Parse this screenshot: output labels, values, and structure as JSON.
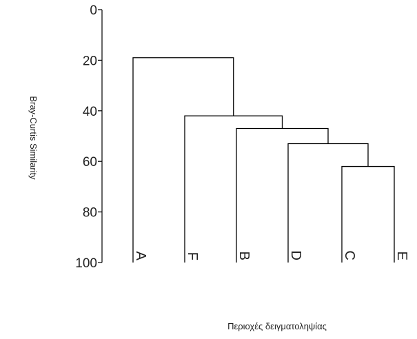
{
  "chart_data": {
    "type": "dendrogram",
    "ylabel": "Bray-Curtis Similarity",
    "xlabel": "Περιοχές δειγματοληψίας",
    "ylim": [
      0,
      100
    ],
    "yticks": [
      "0",
      "20",
      "40",
      "60",
      "80",
      "100"
    ],
    "leaves": [
      "A",
      "F",
      "B",
      "D",
      "C",
      "E"
    ],
    "merges": [
      {
        "left": "C",
        "right": "E",
        "similarity": 62
      },
      {
        "left": "D",
        "right": "C-E",
        "similarity": 53
      },
      {
        "left": "B",
        "right": "D-C-E",
        "similarity": 47
      },
      {
        "left": "F",
        "right": "B-D-C-E",
        "similarity": 42
      },
      {
        "left": "A",
        "right": "F-B-D-C-E",
        "similarity": 19
      }
    ]
  }
}
